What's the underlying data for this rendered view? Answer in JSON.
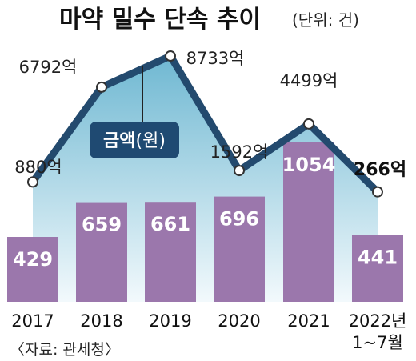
{
  "header": {
    "title": "마약 밀수 단속 추이",
    "unit": "(단위: 건)"
  },
  "source": "〈자료: 관세청〉",
  "legend": {
    "main": "금액",
    "sub": "(원)"
  },
  "colors": {
    "bar": "#9b77ac",
    "line": "#234a6e",
    "badge": "#1f4a72",
    "area_top": "#6fb8d2",
    "area_bottom": "#f2f9fc"
  },
  "chart_data": [
    {
      "type": "bar",
      "categories": [
        "2017",
        "2018",
        "2019",
        "2020",
        "2021",
        "2022년|1~7월"
      ],
      "values": [
        429,
        659,
        661,
        696,
        1054,
        441
      ],
      "value_labels": [
        "429",
        "659",
        "661",
        "696",
        "1054",
        "441"
      ],
      "ylim": [
        0,
        1100
      ]
    },
    {
      "type": "line",
      "name": "금액(원)",
      "categories": [
        "2017",
        "2018",
        "2019",
        "2020",
        "2021",
        "2022년|1~7월"
      ],
      "values": [
        880,
        6792,
        8733,
        1592,
        4499,
        266
      ],
      "value_labels": [
        "880억",
        "6792억",
        "8733억",
        "1592억",
        "4499억",
        "266억"
      ],
      "ylim": [
        0,
        9000
      ]
    }
  ]
}
